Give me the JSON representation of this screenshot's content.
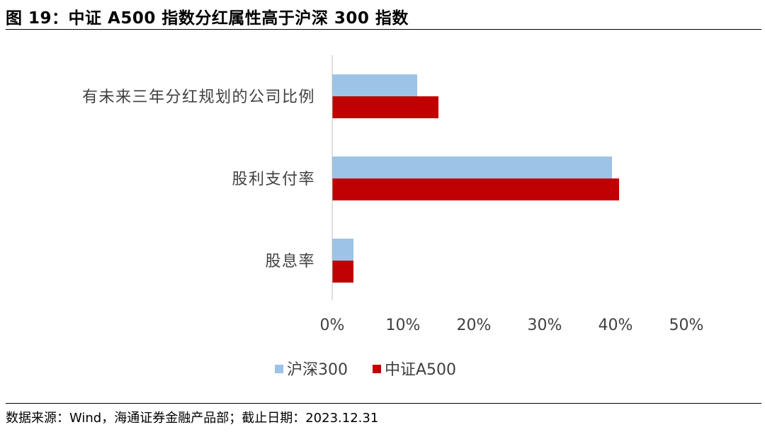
{
  "header": {
    "title": "图 19：中证 A500 指数分红属性高于沪深 300 指数"
  },
  "footer": {
    "source": "数据来源：Wind，海通证券金融产品部；截止日期：2023.12.31"
  },
  "colors": {
    "series_1": "#9DC3E6",
    "series_2": "#C00000"
  },
  "chart_data": {
    "type": "bar",
    "orientation": "horizontal",
    "categories": [
      "有未来三年分红规划的公司比例",
      "股利支付率",
      "股息率"
    ],
    "series": [
      {
        "name": "沪深300",
        "values": [
          12.0,
          39.5,
          3.0
        ]
      },
      {
        "name": "中证A500",
        "values": [
          15.0,
          40.5,
          3.0
        ]
      }
    ],
    "xlim": [
      0,
      50
    ],
    "x_ticks": [
      "0%",
      "10%",
      "20%",
      "30%",
      "40%",
      "50%"
    ],
    "xlabel": "",
    "ylabel": "",
    "legend_position": "bottom",
    "grid": false
  }
}
